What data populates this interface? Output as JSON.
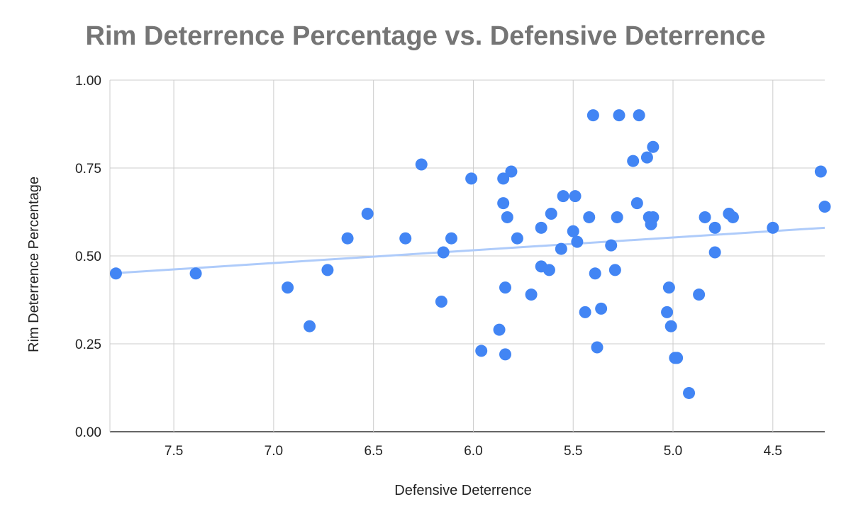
{
  "chart_data": {
    "type": "scatter",
    "title": "Rim Deterrence Percentage vs. Defensive Deterrence",
    "xlabel": "Defensive Deterrence",
    "ylabel": "Rim Deterrence Percentage",
    "x_reversed": true,
    "xlim": [
      7.82,
      4.24
    ],
    "ylim": [
      0,
      1
    ],
    "x_ticks": [
      "7.5",
      "7.0",
      "6.5",
      "6.0",
      "5.5",
      "5.0",
      "4.5"
    ],
    "y_ticks": [
      "0.00",
      "0.25",
      "0.50",
      "0.75",
      "1.00"
    ],
    "grid": true,
    "legend": "none",
    "point_color": "#4285f4",
    "trendline_color": "#aecbfa",
    "trendline": [
      [
        7.82,
        0.45
      ],
      [
        4.24,
        0.58
      ]
    ],
    "points": [
      [
        7.79,
        0.45
      ],
      [
        7.39,
        0.45
      ],
      [
        6.93,
        0.41
      ],
      [
        6.82,
        0.3
      ],
      [
        6.73,
        0.46
      ],
      [
        6.63,
        0.55
      ],
      [
        6.53,
        0.62
      ],
      [
        6.34,
        0.55
      ],
      [
        6.26,
        0.76
      ],
      [
        6.16,
        0.37
      ],
      [
        6.15,
        0.51
      ],
      [
        6.11,
        0.55
      ],
      [
        6.01,
        0.72
      ],
      [
        5.96,
        0.23
      ],
      [
        5.87,
        0.29
      ],
      [
        5.85,
        0.72
      ],
      [
        5.85,
        0.65
      ],
      [
        5.84,
        0.41
      ],
      [
        5.84,
        0.22
      ],
      [
        5.83,
        0.61
      ],
      [
        5.81,
        0.74
      ],
      [
        5.78,
        0.55
      ],
      [
        5.71,
        0.39
      ],
      [
        5.66,
        0.58
      ],
      [
        5.66,
        0.47
      ],
      [
        5.62,
        0.46
      ],
      [
        5.61,
        0.62
      ],
      [
        5.56,
        0.52
      ],
      [
        5.55,
        0.67
      ],
      [
        5.5,
        0.57
      ],
      [
        5.49,
        0.67
      ],
      [
        5.48,
        0.54
      ],
      [
        5.44,
        0.34
      ],
      [
        5.42,
        0.61
      ],
      [
        5.4,
        0.9
      ],
      [
        5.39,
        0.45
      ],
      [
        5.38,
        0.24
      ],
      [
        5.36,
        0.35
      ],
      [
        5.31,
        0.53
      ],
      [
        5.29,
        0.46
      ],
      [
        5.28,
        0.61
      ],
      [
        5.27,
        0.9
      ],
      [
        5.2,
        0.77
      ],
      [
        5.18,
        0.65
      ],
      [
        5.17,
        0.9
      ],
      [
        5.13,
        0.78
      ],
      [
        5.12,
        0.61
      ],
      [
        5.11,
        0.59
      ],
      [
        5.1,
        0.61
      ],
      [
        5.1,
        0.81
      ],
      [
        5.03,
        0.34
      ],
      [
        5.02,
        0.41
      ],
      [
        5.01,
        0.3
      ],
      [
        4.99,
        0.21
      ],
      [
        4.98,
        0.21
      ],
      [
        4.92,
        0.11
      ],
      [
        4.87,
        0.39
      ],
      [
        4.84,
        0.61
      ],
      [
        4.79,
        0.58
      ],
      [
        4.79,
        0.51
      ],
      [
        4.72,
        0.62
      ],
      [
        4.7,
        0.61
      ],
      [
        4.5,
        0.58
      ],
      [
        4.26,
        0.74
      ],
      [
        4.24,
        0.64
      ]
    ]
  }
}
